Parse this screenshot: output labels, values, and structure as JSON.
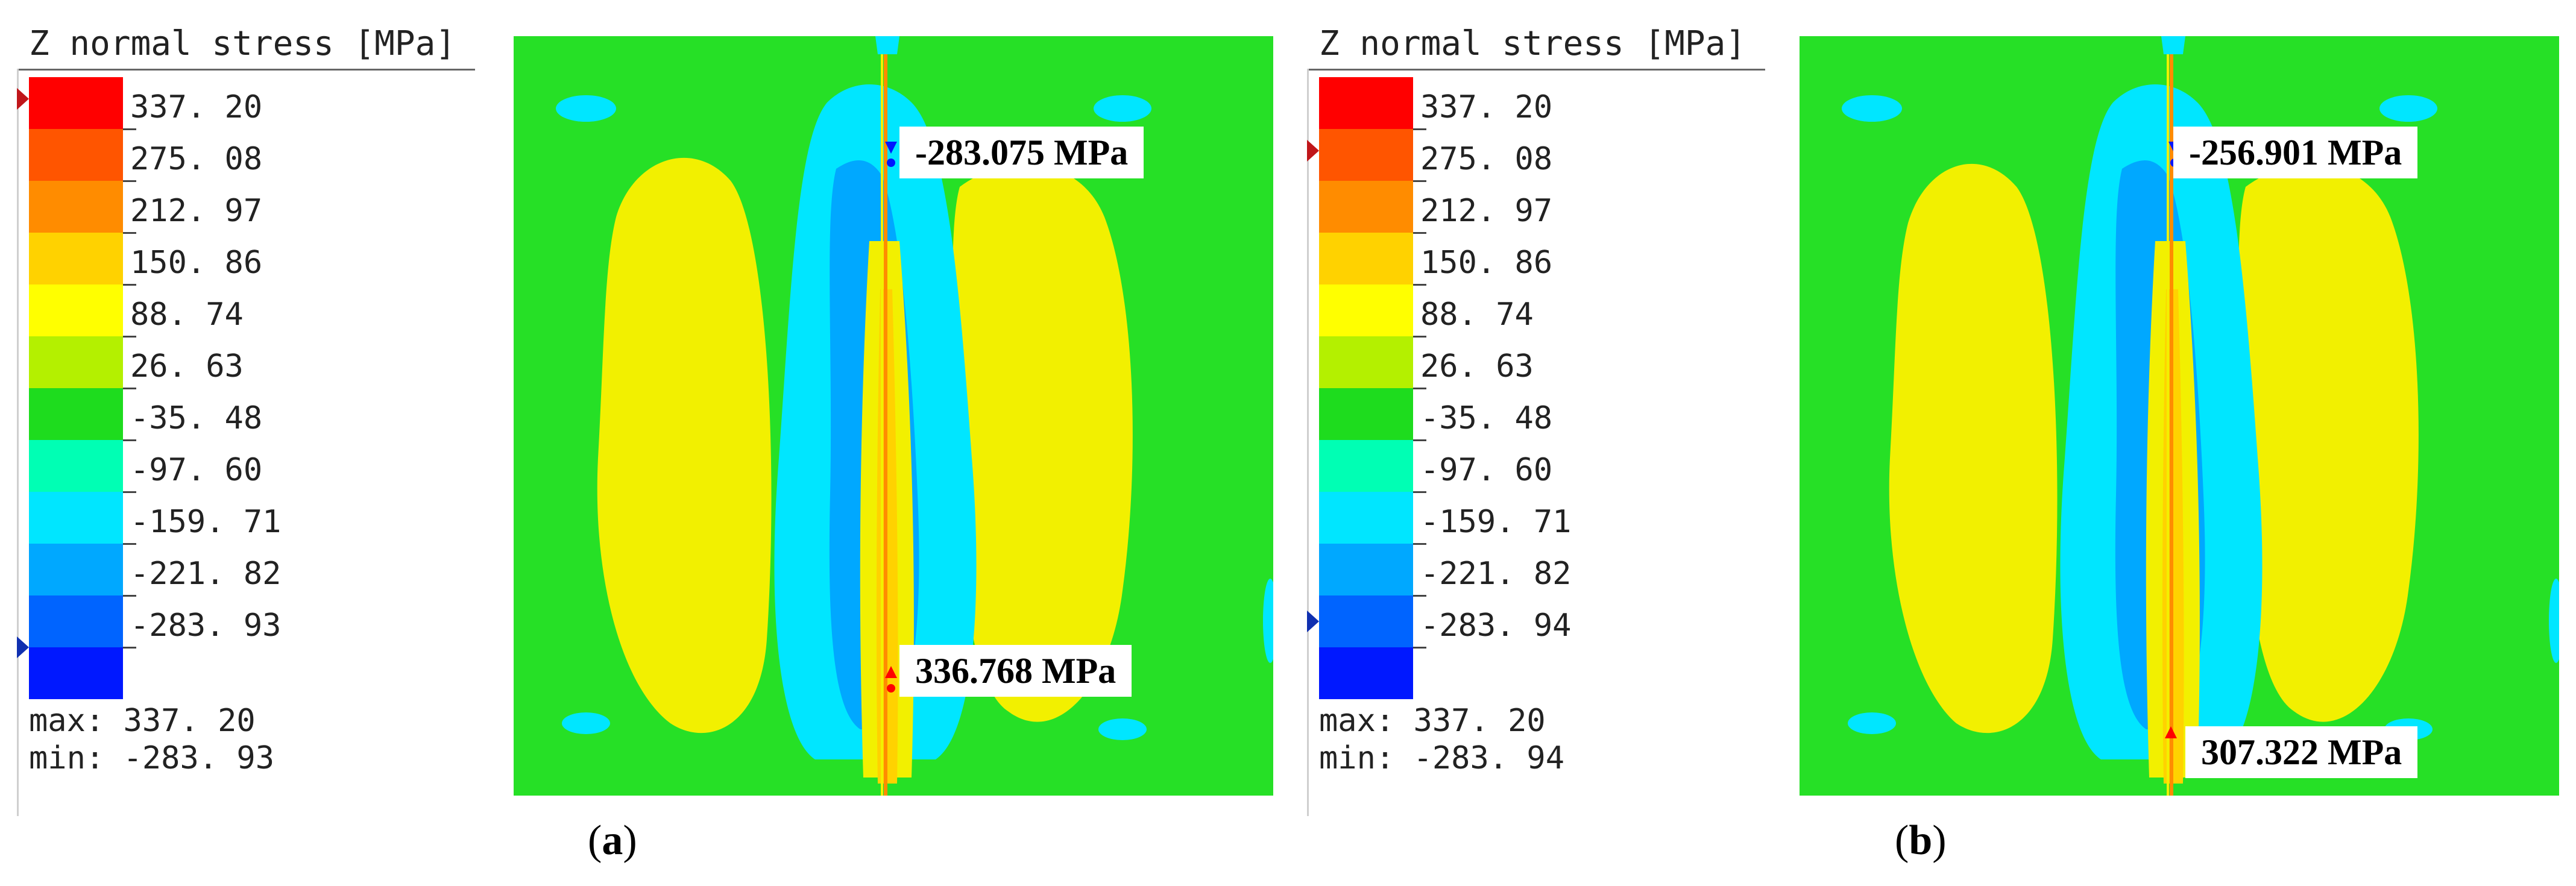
{
  "legend_colors": [
    "#ff0000",
    "#ff5500",
    "#ff8c00",
    "#ffd200",
    "#ffff00",
    "#b4f000",
    "#1edc1e",
    "#00ffb4",
    "#00e6ff",
    "#00a8ff",
    "#0064ff",
    "#0018ff"
  ],
  "field_colors": {
    "background": "#26e026",
    "compression_outer": "#00e6ff",
    "compression_inner": "#00a8ff",
    "tension": "#f2f000",
    "tension_core": "#ffd200",
    "crack_line": "#ff8c00"
  },
  "panels": [
    {
      "id": "a",
      "legend_title": "Z normal stress [MPa]",
      "tick_labels": [
        "337. 20",
        "275. 08",
        "212. 97",
        "150. 86",
        "88. 74",
        "26. 63",
        "-35. 48",
        "-97. 60",
        "-159. 71",
        "-221. 82",
        "-283. 93"
      ],
      "max_label": "max:",
      "max_value": "337. 20",
      "min_label": "min:",
      "min_value": "-283. 93",
      "min_annotation": "-283.075 MPa",
      "max_annotation": "336.768 MPa",
      "caption_open": "(",
      "caption_letter": "a",
      "caption_close": ")",
      "max_marker_level": 0,
      "min_marker_level": 11
    },
    {
      "id": "b",
      "legend_title": "Z normal stress [MPa]",
      "tick_labels": [
        "337. 20",
        "275. 08",
        "212. 97",
        "150. 86",
        "88. 74",
        "26. 63",
        "-35. 48",
        "-97. 60",
        "-159. 71",
        "-221. 82",
        "-283. 94"
      ],
      "max_label": "max:",
      "max_value": "337. 20",
      "min_label": "min:",
      "min_value": "-283. 94",
      "min_annotation": "-256.901 MPa",
      "max_annotation": "307.322 MPa",
      "caption_open": "(",
      "caption_letter": "b",
      "caption_close": ")",
      "max_marker_level": 1,
      "min_marker_level": 10.5
    }
  ]
}
